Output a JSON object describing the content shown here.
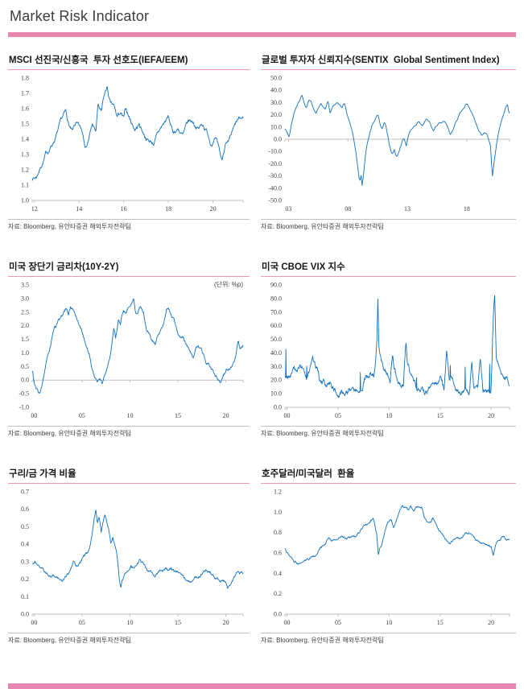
{
  "page": {
    "title": "Market Risk Indicator"
  },
  "colors": {
    "accent_pink": "#e787b0",
    "line": "#1070be",
    "axis": "#bfbfbf"
  },
  "chart_data": [
    {
      "type": "line",
      "title": "MSCI 선진국/신흥국  투자 선호도(IEFA/EEM)",
      "unit_note": "",
      "source": "자료: Bloomberg,  유안타증권 해외투자전략팀",
      "legend": "none",
      "grid": "off",
      "ylim": [
        1.0,
        1.8
      ],
      "ytick_step": 0.1,
      "ytick_decimals": 1,
      "xlim": [
        2011.9,
        2021.35
      ],
      "xticks": [
        2012,
        2014,
        2016,
        2018,
        2020
      ],
      "xtick_labels": [
        "12",
        "14",
        "16",
        "18",
        "20"
      ],
      "axis_y": 1.0,
      "x": [
        2011.92,
        2012.0,
        2012.1,
        2012.2,
        2012.35,
        2012.5,
        2012.65,
        2012.8,
        2012.95,
        2013.1,
        2013.25,
        2013.4,
        2013.55,
        2013.7,
        2013.85,
        2014.0,
        2014.15,
        2014.3,
        2014.45,
        2014.6,
        2014.75,
        2014.85,
        2015.0,
        2015.1,
        2015.25,
        2015.4,
        2015.55,
        2015.7,
        2015.85,
        2016.0,
        2016.1,
        2016.3,
        2016.5,
        2016.7,
        2016.9,
        2017.1,
        2017.35,
        2017.6,
        2017.8,
        2018.0,
        2018.2,
        2018.45,
        2018.65,
        2018.9,
        2019.1,
        2019.35,
        2019.55,
        2019.75,
        2019.9,
        2020.1,
        2020.25,
        2020.4,
        2020.55,
        2020.7,
        2020.9,
        2021.1,
        2021.3
      ],
      "y": [
        1.15,
        1.15,
        1.16,
        1.2,
        1.25,
        1.3,
        1.33,
        1.37,
        1.42,
        1.47,
        1.52,
        1.56,
        1.48,
        1.43,
        1.49,
        1.46,
        1.43,
        1.36,
        1.42,
        1.5,
        1.44,
        1.62,
        1.56,
        1.65,
        1.73,
        1.62,
        1.6,
        1.53,
        1.56,
        1.52,
        1.58,
        1.52,
        1.47,
        1.5,
        1.44,
        1.4,
        1.38,
        1.45,
        1.5,
        1.54,
        1.44,
        1.47,
        1.42,
        1.5,
        1.51,
        1.47,
        1.5,
        1.45,
        1.39,
        1.4,
        1.34,
        1.25,
        1.38,
        1.36,
        1.44,
        1.5,
        1.52
      ],
      "noise": 0.02,
      "spiky": false,
      "points": 560
    },
    {
      "type": "line",
      "title": "글로벌 투자자 신뢰지수(SENTIX  Global Sentiment Index)",
      "unit_note": "",
      "source": "자료: Bloomberg,  유안타증권 해외투자전략팀",
      "legend": "none",
      "grid": "off",
      "ylim": [
        -50,
        50
      ],
      "ytick_step": 10,
      "ytick_decimals": 1,
      "xlim": [
        2002.7,
        2021.6
      ],
      "xticks": [
        2003,
        2008,
        2013,
        2018
      ],
      "xtick_labels": [
        "03",
        "08",
        "13",
        "18"
      ],
      "axis_y": 0,
      "x": [
        2002.75,
        2002.9,
        2003.05,
        2003.2,
        2003.4,
        2003.6,
        2003.8,
        2004.0,
        2004.15,
        2004.3,
        2004.5,
        2004.7,
        2004.9,
        2005.1,
        2005.3,
        2005.5,
        2005.7,
        2005.9,
        2006.1,
        2006.3,
        2006.5,
        2006.7,
        2006.9,
        2007.1,
        2007.3,
        2007.5,
        2007.7,
        2007.9,
        2008.1,
        2008.3,
        2008.5,
        2008.7,
        2008.85,
        2009.0,
        2009.1,
        2009.2,
        2009.35,
        2009.5,
        2009.7,
        2009.9,
        2010.1,
        2010.3,
        2010.5,
        2010.7,
        2010.9,
        2011.1,
        2011.3,
        2011.5,
        2011.7,
        2011.9,
        2012.1,
        2012.3,
        2012.5,
        2012.7,
        2012.9,
        2013.1,
        2013.4,
        2013.7,
        2014.0,
        2014.3,
        2014.6,
        2014.9,
        2015.2,
        2015.5,
        2015.8,
        2016.1,
        2016.4,
        2016.6,
        2016.9,
        2017.2,
        2017.5,
        2017.8,
        2018.0,
        2018.2,
        2018.5,
        2018.8,
        2019.0,
        2019.3,
        2019.5,
        2019.8,
        2020.0,
        2020.15,
        2020.3,
        2020.5,
        2020.7,
        2020.9,
        2021.1,
        2021.3,
        2021.45,
        2021.55
      ],
      "y": [
        8,
        5,
        2,
        10,
        18,
        25,
        30,
        34,
        37,
        32,
        28,
        33,
        30,
        25,
        22,
        27,
        32,
        28,
        24,
        31,
        22,
        27,
        30,
        32,
        28,
        25,
        29,
        22,
        15,
        8,
        -2,
        -15,
        -28,
        -38,
        -30,
        -39,
        -25,
        -12,
        -2,
        6,
        12,
        16,
        20,
        12,
        8,
        15,
        5,
        -5,
        -12,
        -8,
        -14,
        -8,
        -2,
        4,
        -3,
        6,
        10,
        14,
        17,
        13,
        17,
        14,
        8,
        13,
        16,
        15,
        10,
        3,
        8,
        14,
        20,
        25,
        29,
        24,
        18,
        10,
        4,
        -1,
        3,
        -1,
        -6,
        -33,
        -22,
        -8,
        3,
        10,
        18,
        26,
        29,
        21
      ],
      "noise": 2.0,
      "spiky": false,
      "points": 225
    },
    {
      "type": "line",
      "title": "미국 장단기 금리차(10Y-2Y)",
      "unit_note": "(단위: %p)",
      "source": "자료: Bloomberg,  유안타증권 해외투자전략팀",
      "legend": "none",
      "grid": "off",
      "ylim": [
        -1.0,
        3.5
      ],
      "ytick_step": 0.5,
      "ytick_decimals": 1,
      "xlim": [
        1999.8,
        2021.8
      ],
      "xticks": [
        2000,
        2005,
        2010,
        2015,
        2020
      ],
      "xtick_labels": [
        "00",
        "05",
        "10",
        "15",
        "20"
      ],
      "axis_y": 0,
      "x": [
        1999.85,
        2000.0,
        2000.2,
        2000.4,
        2000.6,
        2000.8,
        2001.0,
        2001.2,
        2001.5,
        2001.8,
        2002.1,
        2002.4,
        2002.7,
        2003.0,
        2003.3,
        2003.6,
        2003.8,
        2004.0,
        2004.3,
        2004.6,
        2004.9,
        2005.2,
        2005.5,
        2005.8,
        2006.0,
        2006.3,
        2006.6,
        2006.9,
        2007.1,
        2007.4,
        2007.6,
        2007.9,
        2008.1,
        2008.3,
        2008.5,
        2008.8,
        2009.0,
        2009.3,
        2009.6,
        2009.9,
        2010.1,
        2010.4,
        2010.6,
        2010.9,
        2011.1,
        2011.4,
        2011.7,
        2012.0,
        2012.3,
        2012.6,
        2012.9,
        2013.2,
        2013.5,
        2013.8,
        2014.0,
        2014.3,
        2014.6,
        2014.9,
        2015.2,
        2015.5,
        2015.8,
        2016.1,
        2016.4,
        2016.6,
        2016.9,
        2017.1,
        2017.4,
        2017.7,
        2018.0,
        2018.3,
        2018.6,
        2018.9,
        2019.2,
        2019.45,
        2019.7,
        2019.9,
        2020.1,
        2020.4,
        2020.7,
        2020.9,
        2021.1,
        2021.3,
        2021.5,
        2021.75
      ],
      "y": [
        0.3,
        -0.1,
        -0.35,
        -0.45,
        -0.5,
        -0.3,
        0.0,
        0.5,
        0.9,
        1.4,
        1.8,
        2.0,
        2.2,
        2.4,
        2.55,
        2.4,
        2.7,
        2.6,
        2.4,
        2.15,
        1.9,
        1.55,
        1.2,
        0.9,
        0.5,
        0.15,
        -0.05,
        0.05,
        -0.1,
        0.2,
        0.45,
        0.9,
        1.3,
        1.9,
        1.5,
        2.2,
        2.0,
        2.5,
        2.35,
        2.6,
        2.8,
        2.9,
        2.4,
        2.6,
        2.75,
        2.55,
        1.9,
        1.7,
        1.5,
        1.3,
        1.5,
        1.7,
        2.0,
        2.45,
        2.55,
        2.3,
        2.1,
        1.8,
        1.6,
        1.5,
        1.35,
        1.15,
        0.95,
        0.85,
        1.1,
        1.25,
        1.05,
        0.85,
        0.6,
        0.5,
        0.3,
        0.2,
        0.1,
        -0.05,
        0.15,
        0.25,
        0.4,
        0.5,
        0.6,
        0.8,
        1.1,
        1.55,
        1.25,
        1.25
      ],
      "noise": 0.08,
      "spiky": false,
      "points": 640
    },
    {
      "type": "line",
      "title": "미국 CBOE VIX 지수",
      "unit_note": "",
      "source": "자료: Bloomberg,  유안타증권 해외투자전략팀",
      "legend": "none",
      "grid": "off",
      "ylim": [
        0,
        90
      ],
      "ytick_step": 10,
      "ytick_decimals": 1,
      "xlim": [
        1999.8,
        2021.8
      ],
      "xticks": [
        2000,
        2005,
        2010,
        2015,
        2020
      ],
      "xtick_labels": [
        "00",
        "05",
        "10",
        "15",
        "20"
      ],
      "axis_y": 0,
      "x": [
        1999.85,
        2000.1,
        2000.4,
        2000.7,
        2001.0,
        2001.3,
        2001.7,
        2001.9,
        2002.2,
        2002.5,
        2002.75,
        2003.0,
        2003.3,
        2003.7,
        2004.0,
        2004.4,
        2004.8,
        2005.2,
        2005.6,
        2006.0,
        2006.4,
        2006.8,
        2007.1,
        2007.4,
        2007.6,
        2007.9,
        2008.2,
        2008.5,
        2008.8,
        2008.9,
        2009.0,
        2009.2,
        2009.5,
        2009.8,
        2010.1,
        2010.35,
        2010.5,
        2010.8,
        2011.1,
        2011.4,
        2011.65,
        2011.8,
        2012.1,
        2012.4,
        2012.8,
        2013.2,
        2013.6,
        2014.0,
        2014.4,
        2014.8,
        2015.0,
        2015.4,
        2015.65,
        2015.9,
        2016.1,
        2016.5,
        2016.9,
        2017.2,
        2017.6,
        2017.9,
        2018.1,
        2018.3,
        2018.7,
        2018.95,
        2019.2,
        2019.5,
        2019.8,
        2020.0,
        2020.2,
        2020.35,
        2020.5,
        2020.8,
        2021.0,
        2021.2,
        2021.5,
        2021.75
      ],
      "y": [
        24,
        22,
        24,
        27,
        24,
        33,
        28,
        22,
        24,
        40,
        33,
        28,
        21,
        17,
        15,
        14,
        13,
        12,
        12,
        11,
        13,
        11,
        12,
        14,
        20,
        22,
        24,
        22,
        45,
        80,
        45,
        40,
        28,
        25,
        18,
        40,
        28,
        22,
        17,
        18,
        46,
        32,
        21,
        16,
        15,
        13,
        14,
        13,
        14,
        15,
        19,
        14,
        40,
        22,
        24,
        15,
        12,
        10,
        10,
        9,
        35,
        18,
        14,
        34,
        15,
        14,
        13,
        14,
        65,
        82,
        35,
        28,
        24,
        18,
        20,
        17
      ],
      "noise": 3.0,
      "spiky": true,
      "points": 680
    },
    {
      "type": "line",
      "title": "구리/금 가격 비율",
      "unit_note": "",
      "source": "자료: Bloomberg,  유안타증권 해외투자전략팀",
      "legend": "none",
      "grid": "off",
      "ylim": [
        0,
        0.7
      ],
      "ytick_step": 0.1,
      "ytick_decimals": 1,
      "xlim": [
        1999.8,
        2021.8
      ],
      "xticks": [
        2000,
        2005,
        2010,
        2015,
        2020
      ],
      "xtick_labels": [
        "00",
        "05",
        "10",
        "15",
        "20"
      ],
      "axis_y": 0,
      "x": [
        1999.85,
        2000.1,
        2000.35,
        2000.6,
        2000.9,
        2001.2,
        2001.5,
        2001.8,
        2002.1,
        2002.4,
        2002.7,
        2003.0,
        2003.3,
        2003.6,
        2003.9,
        2004.1,
        2004.4,
        2004.7,
        2005.0,
        2005.3,
        2005.6,
        2005.9,
        2006.1,
        2006.3,
        2006.45,
        2006.6,
        2006.8,
        2007.0,
        2007.2,
        2007.4,
        2007.6,
        2007.8,
        2008.0,
        2008.2,
        2008.5,
        2008.7,
        2008.9,
        2009.05,
        2009.2,
        2009.5,
        2009.8,
        2010.1,
        2010.4,
        2010.7,
        2011.0,
        2011.3,
        2011.6,
        2011.9,
        2012.2,
        2012.5,
        2012.8,
        2013.1,
        2013.4,
        2013.7,
        2014.0,
        2014.3,
        2014.6,
        2014.9,
        2015.2,
        2015.5,
        2015.8,
        2016.1,
        2016.4,
        2016.7,
        2017.0,
        2017.3,
        2017.6,
        2017.9,
        2018.2,
        2018.5,
        2018.8,
        2019.1,
        2019.4,
        2019.7,
        2020.0,
        2020.2,
        2020.45,
        2020.7,
        2021.0,
        2021.3,
        2021.5,
        2021.75
      ],
      "y": [
        0.29,
        0.31,
        0.29,
        0.28,
        0.26,
        0.24,
        0.22,
        0.215,
        0.225,
        0.215,
        0.21,
        0.21,
        0.22,
        0.235,
        0.27,
        0.3,
        0.28,
        0.3,
        0.32,
        0.33,
        0.35,
        0.41,
        0.47,
        0.55,
        0.59,
        0.52,
        0.55,
        0.47,
        0.52,
        0.57,
        0.52,
        0.49,
        0.41,
        0.45,
        0.4,
        0.33,
        0.2,
        0.16,
        0.2,
        0.23,
        0.26,
        0.3,
        0.27,
        0.29,
        0.315,
        0.29,
        0.26,
        0.225,
        0.245,
        0.22,
        0.235,
        0.24,
        0.23,
        0.245,
        0.24,
        0.255,
        0.24,
        0.25,
        0.24,
        0.22,
        0.2,
        0.185,
        0.175,
        0.195,
        0.215,
        0.22,
        0.235,
        0.245,
        0.235,
        0.225,
        0.215,
        0.205,
        0.2,
        0.19,
        0.175,
        0.14,
        0.17,
        0.195,
        0.225,
        0.245,
        0.23,
        0.24
      ],
      "noise": 0.011,
      "spiky": false,
      "points": 640
    },
    {
      "type": "line",
      "title": "호주달러/미국달러  환율",
      "unit_note": "",
      "source": "자료: Bloomberg,  유안타증권 해외투자전략팀",
      "legend": "none",
      "grid": "off",
      "ylim": [
        0,
        1.2
      ],
      "ytick_step": 0.2,
      "ytick_decimals": 1,
      "xlim": [
        1999.8,
        2021.8
      ],
      "xticks": [
        2000,
        2005,
        2010,
        2015,
        2020
      ],
      "xtick_labels": [
        "00",
        "05",
        "10",
        "15",
        "20"
      ],
      "axis_y": 0,
      "x": [
        1999.85,
        2000.1,
        2000.4,
        2000.7,
        2001.0,
        2001.3,
        2001.55,
        2001.8,
        2002.1,
        2002.4,
        2002.7,
        2003.0,
        2003.3,
        2003.6,
        2003.9,
        2004.1,
        2004.35,
        2004.6,
        2004.9,
        2005.2,
        2005.5,
        2005.8,
        2006.1,
        2006.4,
        2006.7,
        2007.0,
        2007.3,
        2007.6,
        2007.9,
        2008.2,
        2008.45,
        2008.6,
        2008.8,
        2008.95,
        2009.1,
        2009.3,
        2009.6,
        2009.9,
        2010.2,
        2010.45,
        2010.7,
        2011.0,
        2011.3,
        2011.6,
        2011.9,
        2012.1,
        2012.4,
        2012.7,
        2013.0,
        2013.2,
        2013.45,
        2013.7,
        2014.0,
        2014.3,
        2014.6,
        2014.9,
        2015.2,
        2015.5,
        2015.8,
        2016.0,
        2016.3,
        2016.6,
        2016.9,
        2017.2,
        2017.5,
        2017.8,
        2018.0,
        2018.3,
        2018.6,
        2018.9,
        2019.2,
        2019.5,
        2019.8,
        2020.0,
        2020.2,
        2020.4,
        2020.6,
        2020.85,
        2021.1,
        2021.3,
        2021.5,
        2021.75
      ],
      "y": [
        0.65,
        0.6,
        0.57,
        0.53,
        0.51,
        0.49,
        0.485,
        0.51,
        0.53,
        0.55,
        0.56,
        0.59,
        0.65,
        0.68,
        0.72,
        0.76,
        0.72,
        0.71,
        0.745,
        0.77,
        0.76,
        0.75,
        0.74,
        0.755,
        0.745,
        0.785,
        0.825,
        0.87,
        0.89,
        0.93,
        0.965,
        0.9,
        0.8,
        0.62,
        0.67,
        0.71,
        0.82,
        0.9,
        0.92,
        0.85,
        0.92,
        1.0,
        1.07,
        1.05,
        1.02,
        1.06,
        1.02,
        1.04,
        1.045,
        1.055,
        0.96,
        0.92,
        0.89,
        0.935,
        0.88,
        0.82,
        0.77,
        0.72,
        0.71,
        0.695,
        0.745,
        0.755,
        0.745,
        0.765,
        0.79,
        0.8,
        0.79,
        0.735,
        0.72,
        0.705,
        0.7,
        0.685,
        0.675,
        0.66,
        0.57,
        0.645,
        0.7,
        0.73,
        0.775,
        0.755,
        0.73,
        0.735
      ],
      "noise": 0.015,
      "spiky": false,
      "points": 640
    }
  ]
}
